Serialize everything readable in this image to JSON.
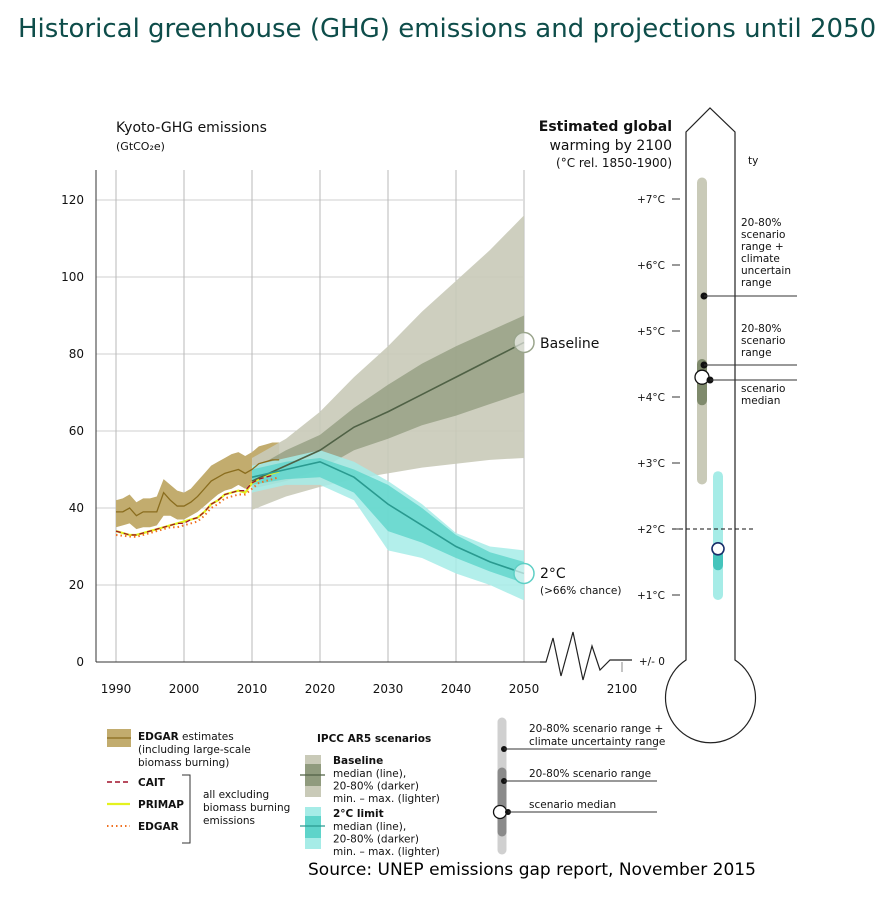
{
  "title": "Historical greenhouse (GHG) emissions and projections until 2050",
  "source": "Source: UNEP emissions gap report, November 2015",
  "chart_data": {
    "type": "area",
    "title": "Kyoto-GHG emissions",
    "ylabel": "(GtCO₂e)",
    "x_ticks": [
      1990,
      2000,
      2010,
      2020,
      2030,
      2040,
      2050,
      2100
    ],
    "y_ticks": [
      0,
      20,
      40,
      60,
      80,
      100,
      120
    ],
    "ylim": [
      0,
      125
    ],
    "xlim": [
      1988,
      2100
    ],
    "grid": "vertical lines at decades, horizontal lines at y ticks",
    "historical": {
      "years": [
        1990,
        1991,
        1992,
        1993,
        1994,
        1995,
        1996,
        1997,
        1998,
        1999,
        2000,
        2001,
        2002,
        2003,
        2004,
        2005,
        2006,
        2007,
        2008,
        2009,
        2010,
        2011,
        2012,
        2013,
        2014
      ],
      "edgar_incl_biomass": {
        "name": "EDGAR estimates",
        "median": [
          39,
          39,
          40,
          38,
          39,
          39,
          39,
          44,
          42,
          40.5,
          40.5,
          41.5,
          43,
          45,
          47,
          48,
          49,
          49.5,
          50,
          49,
          50,
          51.5,
          52,
          52.5,
          52.5
        ],
        "low": [
          35,
          35.5,
          36,
          34.5,
          35,
          35,
          35.5,
          38,
          38,
          37,
          37,
          38,
          39,
          40.5,
          42,
          43.5,
          44.5,
          45,
          46,
          45,
          46,
          47,
          48,
          48.5,
          48.5
        ],
        "high": [
          42,
          42.5,
          43.5,
          41.5,
          42.5,
          42.5,
          43,
          47.5,
          46,
          44.5,
          44,
          45,
          47,
          49,
          51,
          52,
          53,
          54,
          54.5,
          53.5,
          54.5,
          56,
          56.5,
          57,
          57
        ]
      },
      "cait": {
        "name": "CAIT",
        "values": [
          34,
          33.5,
          33,
          33,
          33.5,
          34,
          34.5,
          35,
          35.5,
          36,
          36,
          37,
          37.5,
          39,
          41,
          42,
          43.5,
          44,
          44.5,
          44.5,
          46.5,
          47.5,
          48,
          48.5,
          null
        ]
      },
      "primap": {
        "name": "PRIMAP",
        "values": [
          34,
          33.5,
          33,
          33,
          33.5,
          34,
          34.5,
          35,
          35.5,
          36,
          36.5,
          37,
          37.5,
          39,
          41,
          42,
          43.5,
          44,
          44.5,
          44,
          46.5,
          47.5,
          48.5,
          49,
          49.5
        ]
      },
      "edgar_excl": {
        "name": "EDGAR",
        "values": [
          33,
          32.8,
          32.6,
          32.5,
          33,
          33.5,
          34,
          34.5,
          35,
          35,
          35.5,
          36,
          36.5,
          38,
          40,
          41,
          42.5,
          43,
          43.5,
          43.5,
          45,
          46.5,
          47,
          47.5,
          48
        ]
      }
    },
    "scenarios": {
      "years": [
        2010,
        2015,
        2020,
        2025,
        2030,
        2035,
        2040,
        2045,
        2050
      ],
      "baseline": {
        "name": "Baseline",
        "median": [
          47,
          51,
          55,
          61,
          65,
          69.5,
          74,
          78.5,
          83
        ],
        "p20": [
          45,
          47,
          50,
          55,
          58,
          61.5,
          64,
          67,
          70
        ],
        "p80": [
          50,
          55,
          59,
          66,
          72,
          77.5,
          82,
          86,
          90
        ],
        "min": [
          39.5,
          43,
          45.5,
          47.5,
          49,
          50.5,
          51.5,
          52.5,
          53
        ],
        "max": [
          53,
          58,
          65,
          74,
          82,
          91,
          99,
          107,
          116
        ]
      },
      "two_c": {
        "name": "2°C",
        "note": "(>66% chance)",
        "median": [
          48,
          50,
          52,
          48,
          41,
          35.5,
          30,
          26,
          23
        ],
        "p20": [
          46,
          47.5,
          48,
          44,
          34,
          31,
          27,
          23.5,
          20.5
        ],
        "p80": [
          50,
          52,
          53,
          50,
          46,
          40,
          33,
          28.5,
          26
        ],
        "min": [
          44,
          46,
          46,
          42,
          29,
          27,
          23,
          20,
          16
        ],
        "max": [
          51,
          53,
          55,
          52,
          47,
          41,
          33.5,
          30,
          29
        ]
      }
    }
  },
  "thermometer": {
    "title_lines": [
      "Estimated global",
      "warming by 2100"
    ],
    "subtitle": "(°C rel. 1850-1900)",
    "stray_text": "ty",
    "ticks": [
      "+/- 0",
      "+1°C",
      "+2°C",
      "+3°C",
      "+4°C",
      "+5°C",
      "+6°C",
      "+7°C"
    ],
    "baseline": {
      "climate_range": [
        2.75,
        7.25
      ],
      "scenario_range": [
        3.95,
        4.5
      ],
      "median": 4.3
    },
    "two_c": {
      "climate_range": [
        1.0,
        2.8
      ],
      "scenario_range": [
        1.45,
        1.7
      ],
      "median": 1.7
    },
    "threshold": 2,
    "annotations": {
      "climate": [
        "20-80%",
        "scenario",
        "range +",
        "climate",
        "uncertain",
        "range"
      ],
      "scenario": [
        "20-80%",
        "scenario",
        "range"
      ],
      "median": [
        "scenario",
        "median"
      ]
    }
  },
  "legend": {
    "edgar": {
      "bold": "EDGAR",
      "rest": " estimates",
      "lines": [
        "(including large-scale",
        "biomass burning)"
      ]
    },
    "cait": "CAIT",
    "primap": "PRIMAP",
    "edgar_excl": "EDGAR",
    "excluding_note": [
      "all excluding",
      "biomass burning",
      "emissions"
    ],
    "ipcc_title": "IPCC AR5 scenarios",
    "baseline": {
      "title": "Baseline",
      "lines": [
        "median (line),",
        "20-80% (darker)",
        "min. – max. (lighter)"
      ]
    },
    "two_c": {
      "title": "2°C limit",
      "lines": [
        "median (line),",
        "20-80% (darker)",
        "min. – max. (lighter)"
      ]
    },
    "thermo_key": {
      "climate": [
        "20-80% scenario range +",
        "climate uncertainty range"
      ],
      "scenario": "20-80% scenario range",
      "median": "scenario median"
    }
  },
  "colors": {
    "title": "#0e4d4a",
    "edgar_band": "#c2ac6e",
    "edgar_line": "#8a6d1e",
    "cait": "#a0102a",
    "primap": "#e4f21e",
    "edgar_excl": "#f07020",
    "baseline_light": "#c9cab8",
    "baseline_dark": "#909b7e",
    "baseline_line": "#4f6145",
    "twoc_light": "#a6ece7",
    "twoc_dark": "#5ed4ca",
    "twoc_line": "#2a9a90"
  }
}
